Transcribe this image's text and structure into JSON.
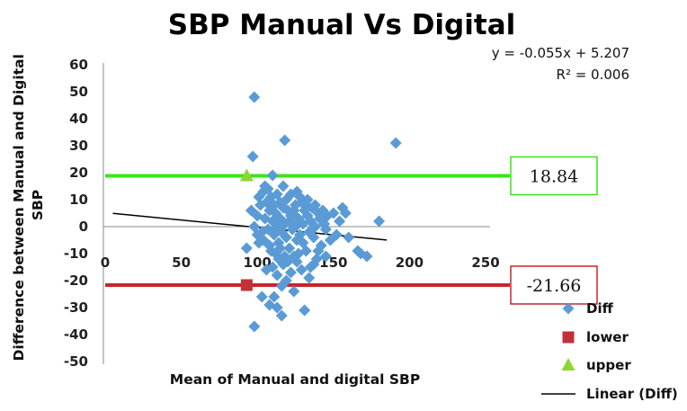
{
  "chart_data": {
    "type": "scatter",
    "title": "SBP Manual Vs Digital",
    "xlabel": "Mean of Manual and digital SBP",
    "ylabel": "Difference between Manual and Digital SBP",
    "xlim": [
      0,
      250
    ],
    "ylim": [
      -50,
      60
    ],
    "x_ticks": [
      "0",
      "50",
      "100",
      "150",
      "200",
      "250"
    ],
    "y_ticks": [
      "60",
      "50",
      "40",
      "30",
      "20",
      "10",
      "0",
      "-10",
      "-20",
      "-30",
      "-40",
      "-50"
    ],
    "x_tick_values": [
      0,
      50,
      100,
      150,
      200,
      250
    ],
    "y_tick_values": [
      60,
      50,
      40,
      30,
      20,
      10,
      0,
      -10,
      -20,
      -30,
      -40,
      -50
    ],
    "grid": false,
    "legend_position": "bottom-right",
    "series": [
      {
        "name": "Diff",
        "color": "#5b9bd5",
        "marker": "diamond",
        "points": [
          [
            98,
            48
          ],
          [
            97,
            26
          ],
          [
            110,
            19
          ],
          [
            118,
            32
          ],
          [
            191,
            31
          ],
          [
            93,
            -8
          ],
          [
            96,
            6
          ],
          [
            98,
            0
          ],
          [
            100,
            4
          ],
          [
            101,
            11
          ],
          [
            102,
            8
          ],
          [
            103,
            -2
          ],
          [
            104,
            13
          ],
          [
            104,
            -5
          ],
          [
            105,
            3
          ],
          [
            106,
            9
          ],
          [
            107,
            -1
          ],
          [
            107,
            14
          ],
          [
            108,
            6
          ],
          [
            108,
            -7
          ],
          [
            109,
            11
          ],
          [
            110,
            2
          ],
          [
            111,
            -3
          ],
          [
            111,
            8
          ],
          [
            112,
            5
          ],
          [
            112,
            -10
          ],
          [
            113,
            12
          ],
          [
            113,
            0
          ],
          [
            114,
            -6
          ],
          [
            115,
            3
          ],
          [
            115,
            9
          ],
          [
            116,
            -2
          ],
          [
            117,
            7
          ],
          [
            117,
            -14
          ],
          [
            118,
            1
          ],
          [
            119,
            10
          ],
          [
            119,
            -4
          ],
          [
            120,
            6
          ],
          [
            121,
            -8
          ],
          [
            121,
            2
          ],
          [
            122,
            12
          ],
          [
            123,
            -1
          ],
          [
            123,
            5
          ],
          [
            124,
            -11
          ],
          [
            125,
            8
          ],
          [
            125,
            0
          ],
          [
            126,
            13
          ],
          [
            126,
            -5
          ],
          [
            127,
            3
          ],
          [
            128,
            -3
          ],
          [
            129,
            9
          ],
          [
            130,
            1
          ],
          [
            130,
            -6
          ],
          [
            131,
            6
          ],
          [
            132,
            -9
          ],
          [
            133,
            4
          ],
          [
            133,
            10
          ],
          [
            134,
            -2
          ],
          [
            135,
            2
          ],
          [
            136,
            7
          ],
          [
            137,
            -4
          ],
          [
            138,
            0
          ],
          [
            139,
            -12
          ],
          [
            140,
            5
          ],
          [
            141,
            3
          ],
          [
            142,
            -7
          ],
          [
            143,
            6
          ],
          [
            144,
            1
          ],
          [
            145,
            -1
          ],
          [
            146,
            4
          ],
          [
            148,
            -5
          ],
          [
            150,
            5
          ],
          [
            152,
            -3
          ],
          [
            154,
            2
          ],
          [
            156,
            7
          ],
          [
            158,
            5
          ],
          [
            160,
            -4
          ],
          [
            166,
            -9
          ],
          [
            168,
            -10
          ],
          [
            172,
            -11
          ],
          [
            180,
            2
          ],
          [
            110,
            -15
          ],
          [
            113,
            -18
          ],
          [
            116,
            -22
          ],
          [
            119,
            -20
          ],
          [
            122,
            -17
          ],
          [
            124,
            -24
          ],
          [
            126,
            -13
          ],
          [
            129,
            -16
          ],
          [
            134,
            -19
          ],
          [
            137,
            -14
          ],
          [
            103,
            -26
          ],
          [
            108,
            -29
          ],
          [
            111,
            -26
          ],
          [
            113,
            -30
          ],
          [
            116,
            -33
          ],
          [
            131,
            -31
          ],
          [
            98,
            -37
          ],
          [
            127,
            -10
          ],
          [
            114,
            -12
          ],
          [
            120,
            -13
          ],
          [
            106,
            -16
          ],
          [
            135,
            -15
          ],
          [
            140,
            -9
          ],
          [
            145,
            -11
          ],
          [
            101,
            -6
          ],
          [
            105,
            15
          ],
          [
            117,
            15
          ],
          [
            122,
            4
          ],
          [
            128,
            11
          ],
          [
            109,
            -9
          ],
          [
            115,
            -8
          ],
          [
            132,
            8
          ],
          [
            100,
            -3
          ],
          [
            118,
            -11
          ],
          [
            124,
            6
          ],
          [
            138,
            8
          ]
        ]
      },
      {
        "name": "lower",
        "color": "#c0313a",
        "marker": "square",
        "points": [
          [
            93,
            -21.66
          ]
        ]
      },
      {
        "name": "upper",
        "color": "#8dd630",
        "marker": "triangle",
        "points": [
          [
            93,
            18.84
          ]
        ]
      },
      {
        "name": "Linear (Diff)",
        "color": "#000000",
        "marker": "line",
        "points": [
          [
            5,
            4.93
          ],
          [
            185,
            -4.97
          ]
        ]
      }
    ],
    "reference_lines": [
      {
        "label": "18.84",
        "value": 18.84,
        "color": "#39e619"
      },
      {
        "label": "-21.66",
        "value": -21.66,
        "color": "#c8252c"
      }
    ],
    "trendline_equation": "y = -0.055x + 5.207",
    "r_squared": "R² = 0.006"
  }
}
